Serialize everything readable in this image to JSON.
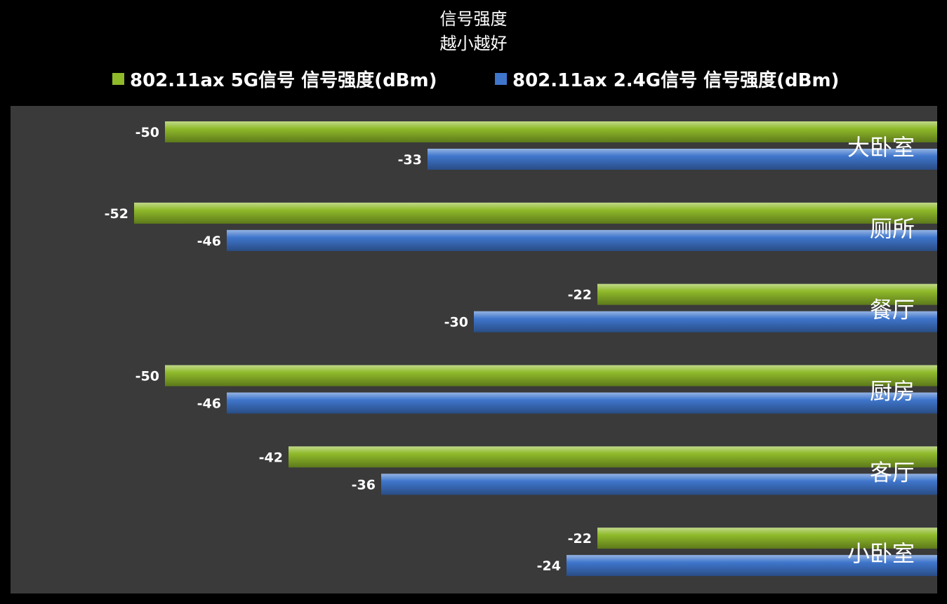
{
  "chart_data": {
    "type": "bar",
    "orientation": "horizontal",
    "title_lines": [
      "信号强度",
      "越小越好"
    ],
    "categories": [
      "大卧室",
      "厕所",
      "餐厅",
      "厨房",
      "客厅",
      "小卧室"
    ],
    "series": [
      {
        "name": "802.11ax 5G信号 信号强度(dBm)",
        "color": "#8fba2a",
        "values": [
          -50,
          -52,
          -22,
          -50,
          -42,
          -22
        ]
      },
      {
        "name": "802.11ax 2.4G信号 信号强度(dBm)",
        "color": "#3f76cc",
        "values": [
          -33,
          -46,
          -30,
          -46,
          -36,
          -24
        ]
      }
    ],
    "xlim": [
      -60,
      0
    ],
    "grid": false,
    "legend_position": "top",
    "data_labels": true,
    "background_color": "#3a3a3a"
  }
}
